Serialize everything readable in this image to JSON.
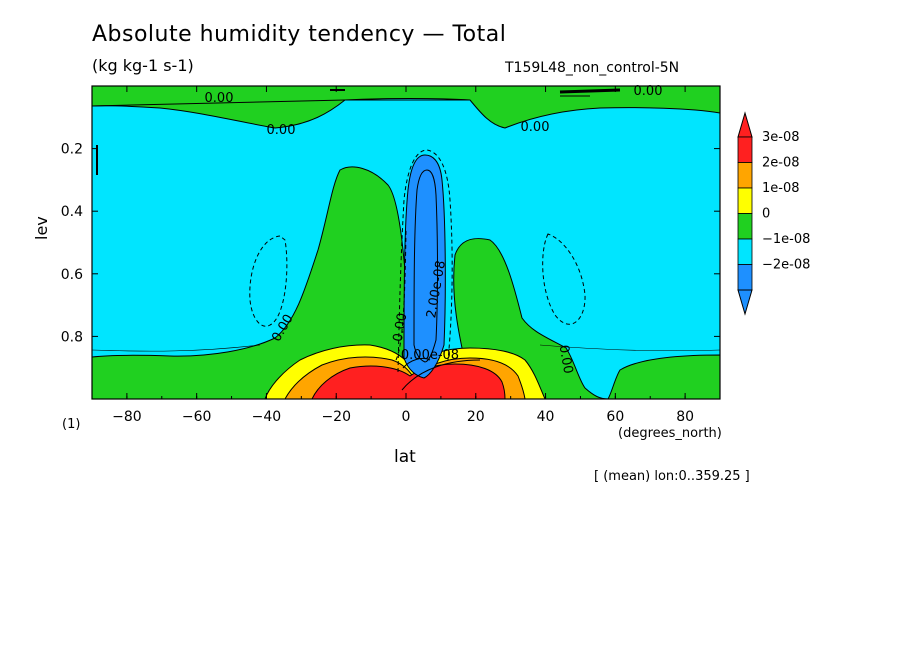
{
  "title": "Absolute humidity tendency — Total",
  "units": "(kg kg-1 s-1)",
  "run_label": "T159L48_non_control-5N",
  "mean_note": "[ (mean) lon:0..359.25 ]",
  "corner_label": "(1)",
  "chart_data": {
    "type": "heatmap",
    "xlabel": "lat",
    "xunit": "(degrees_north)",
    "ylabel": "lev",
    "xlim": [
      -90,
      90
    ],
    "ylim": [
      1.0,
      0.0
    ],
    "xticks": [
      -80,
      -60,
      -40,
      -20,
      0,
      20,
      40,
      60,
      80
    ],
    "yticks": [
      0.2,
      0.4,
      0.6,
      0.8
    ],
    "colorbar": {
      "labels": [
        "3e-08",
        "2e-08",
        "1e-08",
        "0",
        "−1e-08",
        "−2e-08"
      ],
      "colors": [
        "#ff2020",
        "#ffa500",
        "#ffff00",
        "#20d020",
        "#00e5ff",
        "#1e90ff"
      ],
      "extend": "both"
    },
    "background_color": "#00e5ff",
    "contour_labels": [
      "0.00",
      "0.00",
      "0.00",
      "0.00",
      "0.00",
      "0.00",
      "0.00",
      "2.00e-08",
      "0.00e-08"
    ],
    "features": [
      {
        "name": "tropical-drying-column",
        "color": "#1e90ff",
        "lat_center": 5,
        "lev_top": 0.27,
        "lev_bottom": 0.93
      },
      {
        "name": "low-level-moistening",
        "color": "#ff2020",
        "lat_range": [
          -18,
          28
        ],
        "lev_range": [
          0.87,
          1.0
        ]
      }
    ]
  }
}
